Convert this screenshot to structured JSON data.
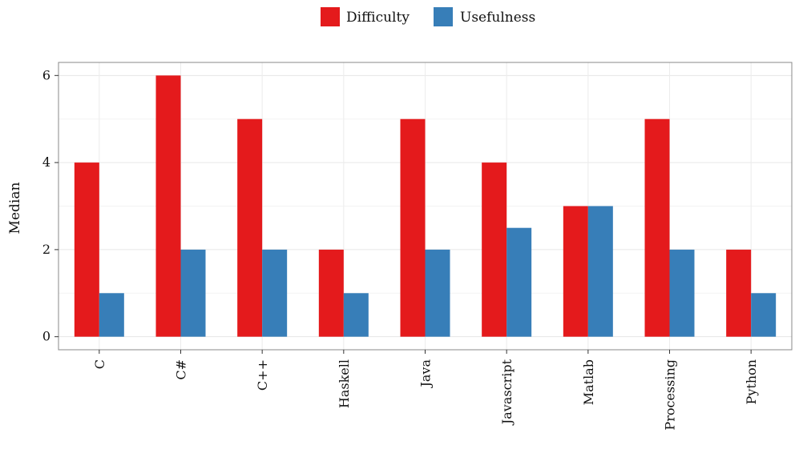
{
  "chart_data": {
    "type": "bar",
    "categories": [
      "C",
      "C#",
      "C++",
      "Haskell",
      "Java",
      "Javascript",
      "Matlab",
      "Processing",
      "Python"
    ],
    "series": [
      {
        "name": "Difficulty",
        "values": [
          4,
          6,
          5,
          2,
          5,
          4,
          3,
          5,
          2
        ]
      },
      {
        "name": "Usefulness",
        "values": [
          1,
          2,
          2,
          1,
          2,
          2.5,
          3,
          2,
          1
        ]
      }
    ],
    "title": "",
    "xlabel": "",
    "ylabel": "Median",
    "ylim": [
      -0.3,
      6.3
    ],
    "yticks": [
      0,
      2,
      4,
      6
    ],
    "grid": true,
    "legend_position": "top",
    "colors": {
      "Difficulty": "#E41A1C",
      "Usefulness": "#377EB8"
    }
  }
}
